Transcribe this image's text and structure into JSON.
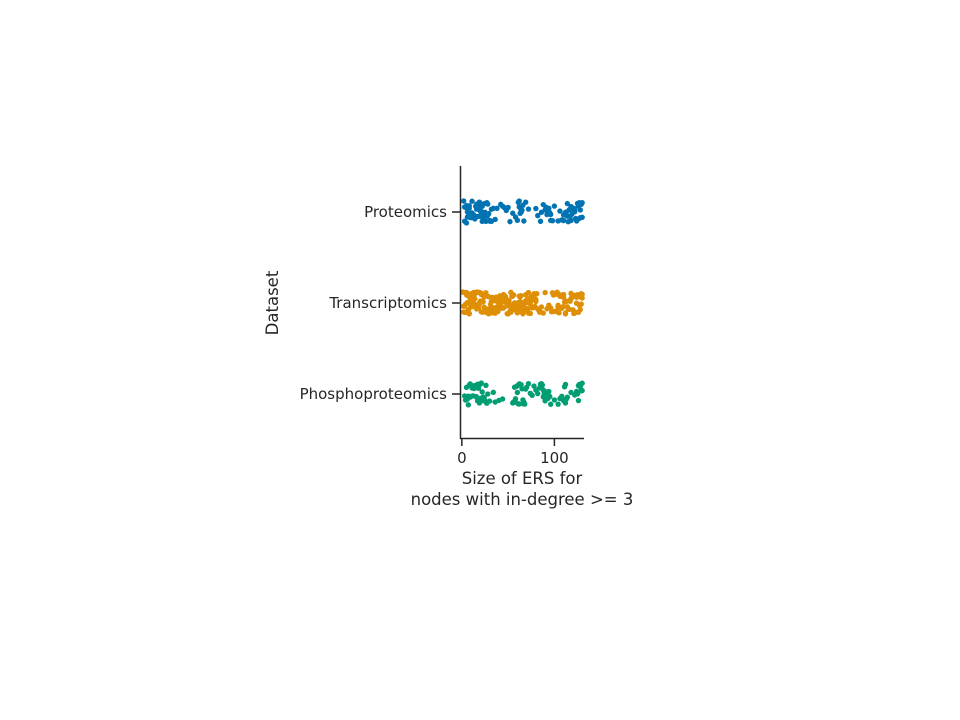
{
  "chart_data": {
    "type": "scatter",
    "subtype": "strip",
    "orientation": "horizontal",
    "title": "",
    "xlabel_lines": [
      "Size of ERS for",
      "nodes with in-degree >= 3"
    ],
    "ylabel": "Dataset",
    "xlim": [
      -2,
      132
    ],
    "xticks": [
      0,
      100
    ],
    "xtick_labels": [
      "0",
      "100"
    ],
    "categories": [
      "Proteomics",
      "Transcriptomics",
      "Phosphoproteomics"
    ],
    "grid": false,
    "legend": "none",
    "colors": {
      "Proteomics": "#0173b2",
      "Transcriptomics": "#de8f05",
      "Phosphoproteomics": "#029e73",
      "axis": "#262626"
    },
    "series": [
      {
        "category": "Proteomics",
        "values": [
          2,
          3,
          4,
          5,
          6,
          7,
          8,
          9,
          10,
          11,
          12,
          13,
          14,
          15,
          16,
          17,
          18,
          19,
          20,
          21,
          22,
          23,
          24,
          25,
          26,
          27,
          28,
          29,
          30,
          31,
          32,
          34,
          36,
          38,
          42,
          46,
          48,
          50,
          52,
          55,
          58,
          60,
          61,
          62,
          63,
          64,
          65,
          66,
          67,
          69,
          72,
          80,
          82,
          85,
          86,
          88,
          90,
          91,
          92,
          93,
          94,
          95,
          96,
          100,
          104,
          106,
          108,
          110,
          111,
          112,
          113,
          114,
          115,
          116,
          117,
          118,
          119,
          120,
          121,
          122,
          123,
          124,
          125,
          126,
          127,
          128,
          129,
          130,
          5,
          8,
          12,
          16,
          20,
          24,
          28,
          32,
          96,
          110,
          118,
          124,
          128,
          3,
          11,
          19,
          27,
          62,
          92,
          126,
          130,
          6,
          14,
          22,
          30,
          44,
          64,
          98,
          114,
          122
        ]
      },
      {
        "category": "Transcriptomics",
        "values": [
          1,
          2,
          3,
          4,
          5,
          6,
          7,
          8,
          9,
          10,
          11,
          12,
          13,
          14,
          15,
          16,
          17,
          18,
          19,
          20,
          21,
          22,
          23,
          24,
          25,
          26,
          27,
          28,
          29,
          30,
          31,
          32,
          33,
          34,
          35,
          36,
          37,
          38,
          39,
          40,
          41,
          42,
          43,
          44,
          45,
          46,
          47,
          48,
          49,
          50,
          51,
          52,
          53,
          54,
          55,
          56,
          57,
          58,
          59,
          60,
          61,
          62,
          63,
          64,
          65,
          66,
          67,
          68,
          69,
          70,
          71,
          72,
          73,
          74,
          75,
          76,
          77,
          78,
          79,
          80,
          81,
          82,
          83,
          84,
          85,
          86,
          88,
          90,
          92,
          94,
          96,
          97,
          98,
          99,
          100,
          101,
          102,
          103,
          104,
          105,
          106,
          107,
          108,
          109,
          110,
          111,
          112,
          113,
          114,
          115,
          116,
          117,
          118,
          119,
          120,
          121,
          122,
          123,
          124,
          125,
          126,
          127,
          128,
          129,
          130,
          2,
          4,
          6,
          8,
          10,
          12,
          14,
          16,
          18,
          20,
          22,
          24,
          26,
          28,
          30,
          32,
          34,
          36,
          38,
          40,
          42,
          44,
          46,
          48,
          50,
          52,
          54,
          56,
          58,
          60,
          62,
          64,
          66,
          68,
          70,
          72,
          74,
          76,
          78,
          80,
          100,
          104,
          108,
          112,
          116,
          120,
          124,
          128,
          130,
          3,
          7,
          11,
          15,
          19,
          23,
          27,
          31,
          35,
          39,
          43,
          47,
          51,
          55,
          59,
          63,
          67,
          71,
          75,
          79,
          102,
          110,
          118,
          126,
          1,
          5,
          9,
          13,
          17,
          21,
          25,
          29,
          33,
          37,
          41,
          45,
          49,
          53,
          57,
          61,
          65,
          69,
          73,
          77,
          122,
          129
        ]
      },
      {
        "category": "Phosphoproteomics",
        "values": [
          3,
          4,
          5,
          6,
          7,
          8,
          9,
          10,
          11,
          12,
          13,
          14,
          15,
          16,
          17,
          18,
          19,
          20,
          21,
          22,
          23,
          24,
          25,
          26,
          27,
          28,
          30,
          34,
          36,
          40,
          44,
          55,
          56,
          57,
          58,
          59,
          60,
          61,
          62,
          63,
          64,
          65,
          66,
          67,
          68,
          69,
          70,
          72,
          74,
          76,
          78,
          80,
          82,
          84,
          85,
          86,
          87,
          88,
          89,
          90,
          91,
          92,
          93,
          94,
          95,
          96,
          100,
          104,
          106,
          108,
          110,
          111,
          112,
          113,
          114,
          118,
          122,
          124,
          125,
          126,
          127,
          128,
          129,
          130,
          5,
          9,
          13,
          17,
          21,
          25,
          58,
          62,
          66,
          88,
          92,
          112,
          126,
          130,
          7,
          15,
          23,
          60,
          86,
          128
        ]
      }
    ]
  }
}
